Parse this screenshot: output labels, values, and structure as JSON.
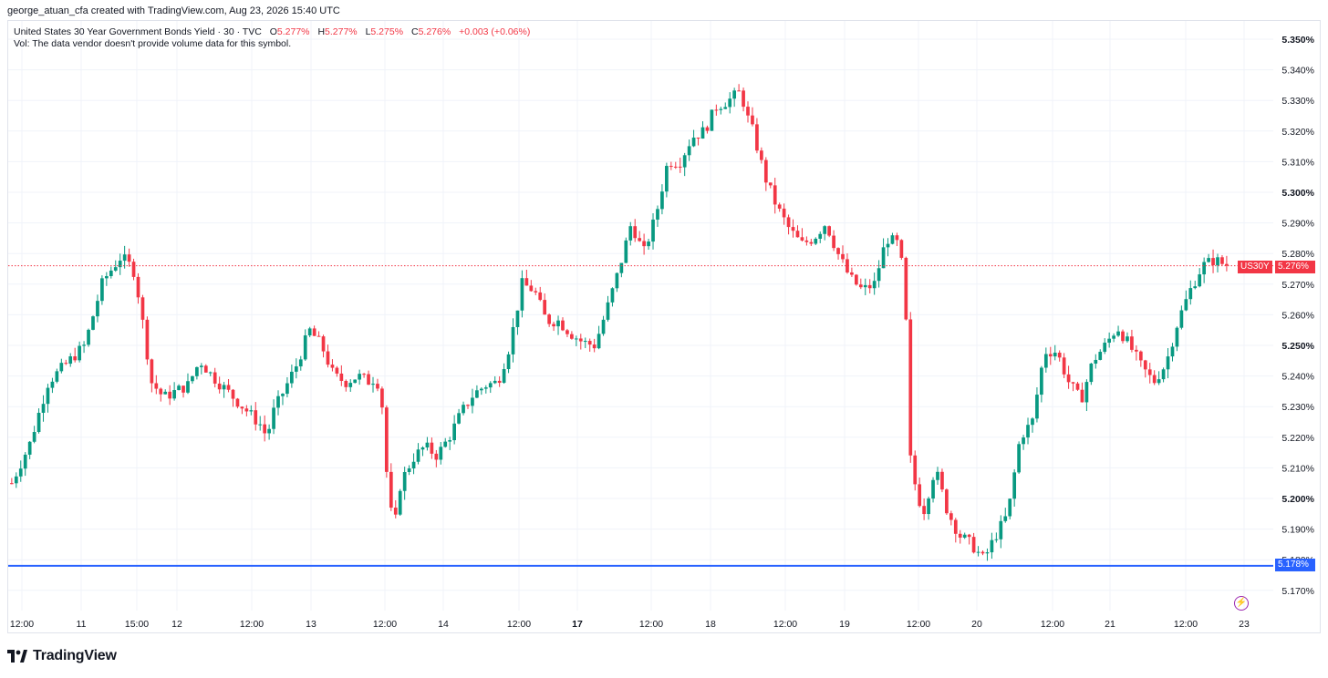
{
  "header": {
    "creator_line": "george_atuan_cfa created with TradingView.com, Aug 23, 2026 15:40 UTC"
  },
  "legend": {
    "symbol_name": "United States 30 Year Government Bonds Yield · 30 · TVC",
    "open_label": "O",
    "open_value": "5.277%",
    "high_label": "H",
    "high_value": "5.277%",
    "low_label": "L",
    "low_value": "5.275%",
    "close_label": "C",
    "close_value": "5.276%",
    "change": "+0.003 (+0.06%)",
    "volume_note": "Vol: The data vendor doesn't provide volume data for this symbol."
  },
  "price_tags": {
    "symbol_tag": "US30Y",
    "current_price": "5.276%",
    "support_price": "5.178%"
  },
  "colors": {
    "up": "#089981",
    "down": "#f23645",
    "support_line": "#2962ff",
    "grid": "#f0f3fa"
  },
  "brand": {
    "logo_text": "TradingView",
    "logo_icon": "tradingview-logo-icon"
  },
  "alert_icon": "lightning-icon",
  "chart_data": {
    "type": "candlestick",
    "title": "United States 30 Year Government Bonds Yield · 30 · TVC",
    "y_axis": {
      "ticks": [
        "5.350%",
        "5.340%",
        "5.330%",
        "5.320%",
        "5.310%",
        "5.300%",
        "5.290%",
        "5.280%",
        "5.270%",
        "5.260%",
        "5.250%",
        "5.240%",
        "5.230%",
        "5.220%",
        "5.210%",
        "5.200%",
        "5.190%",
        "5.180%",
        "5.170%"
      ],
      "bold_ticks": [
        "5.350%",
        "5.300%",
        "5.250%",
        "5.200%"
      ],
      "range": [
        5.167,
        5.357
      ]
    },
    "x_axis": {
      "ticks": [
        "12:00",
        "11",
        "15:00",
        "12",
        "12:00",
        "13",
        "12:00",
        "14",
        "12:00",
        "17",
        "12:00",
        "18",
        "12:00",
        "19",
        "12:00",
        "20",
        "12:00",
        "21",
        "12:00",
        "23"
      ],
      "bold_ticks": [
        "17"
      ]
    },
    "current_price": 5.276,
    "support_level": 5.178,
    "path": [
      [
        0,
        5.205
      ],
      [
        3,
        5.218
      ],
      [
        6,
        5.238
      ],
      [
        9,
        5.244
      ],
      [
        12,
        5.25
      ],
      [
        15,
        5.271
      ],
      [
        18,
        5.279
      ],
      [
        20,
        5.275
      ],
      [
        21,
        5.265
      ],
      [
        23,
        5.238
      ],
      [
        25,
        5.233
      ],
      [
        27,
        5.235
      ],
      [
        29,
        5.237
      ],
      [
        31,
        5.245
      ],
      [
        33,
        5.24
      ],
      [
        35,
        5.236
      ],
      [
        37,
        5.232
      ],
      [
        39,
        5.228
      ],
      [
        41,
        5.224
      ],
      [
        42,
        5.22
      ],
      [
        43,
        5.228
      ],
      [
        45,
        5.236
      ],
      [
        47,
        5.244
      ],
      [
        49,
        5.255
      ],
      [
        51,
        5.25
      ],
      [
        53,
        5.24
      ],
      [
        55,
        5.238
      ],
      [
        57,
        5.24
      ],
      [
        59,
        5.238
      ],
      [
        60,
        5.24
      ],
      [
        61,
        5.23
      ],
      [
        62,
        5.2
      ],
      [
        63,
        5.19
      ],
      [
        64,
        5.205
      ],
      [
        66,
        5.213
      ],
      [
        68,
        5.217
      ],
      [
        70,
        5.214
      ],
      [
        72,
        5.22
      ],
      [
        74,
        5.228
      ],
      [
        76,
        5.234
      ],
      [
        78,
        5.237
      ],
      [
        80,
        5.238
      ],
      [
        82,
        5.25
      ],
      [
        84,
        5.27
      ],
      [
        86,
        5.268
      ],
      [
        88,
        5.258
      ],
      [
        90,
        5.258
      ],
      [
        92,
        5.254
      ],
      [
        94,
        5.251
      ],
      [
        96,
        5.25
      ],
      [
        98,
        5.262
      ],
      [
        100,
        5.275
      ],
      [
        102,
        5.29
      ],
      [
        104,
        5.28
      ],
      [
        106,
        5.292
      ],
      [
        108,
        5.31
      ],
      [
        110,
        5.31
      ],
      [
        112,
        5.318
      ],
      [
        114,
        5.32
      ],
      [
        116,
        5.328
      ],
      [
        118,
        5.33
      ],
      [
        120,
        5.333
      ],
      [
        121,
        5.325
      ],
      [
        122,
        5.32
      ],
      [
        124,
        5.305
      ],
      [
        126,
        5.295
      ],
      [
        128,
        5.288
      ],
      [
        130,
        5.283
      ],
      [
        132,
        5.285
      ],
      [
        134,
        5.29
      ],
      [
        136,
        5.28
      ],
      [
        138,
        5.272
      ],
      [
        140,
        5.268
      ],
      [
        142,
        5.27
      ],
      [
        144,
        5.285
      ],
      [
        146,
        5.283
      ],
      [
        147,
        5.27
      ],
      [
        148,
        5.21
      ],
      [
        150,
        5.195
      ],
      [
        152,
        5.21
      ],
      [
        154,
        5.196
      ],
      [
        156,
        5.188
      ],
      [
        158,
        5.185
      ],
      [
        160,
        5.18
      ],
      [
        162,
        5.188
      ],
      [
        164,
        5.195
      ],
      [
        166,
        5.22
      ],
      [
        168,
        5.225
      ],
      [
        170,
        5.248
      ],
      [
        172,
        5.248
      ],
      [
        174,
        5.238
      ],
      [
        176,
        5.232
      ],
      [
        178,
        5.245
      ],
      [
        180,
        5.25
      ],
      [
        182,
        5.256
      ],
      [
        184,
        5.25
      ],
      [
        186,
        5.243
      ],
      [
        188,
        5.238
      ],
      [
        190,
        5.244
      ],
      [
        192,
        5.258
      ],
      [
        194,
        5.268
      ],
      [
        196,
        5.276
      ],
      [
        198,
        5.278
      ],
      [
        200,
        5.276
      ]
    ]
  }
}
